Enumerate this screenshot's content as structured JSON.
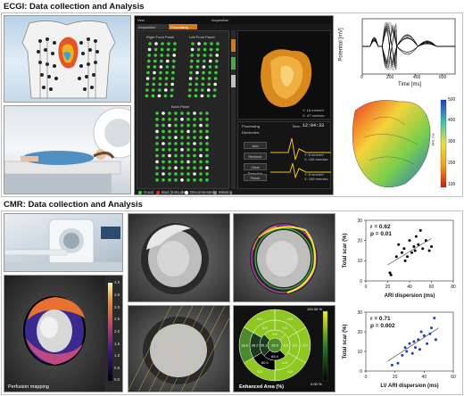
{
  "ecgi": {
    "title": "ECGI: Data collection and Analysis",
    "app": {
      "tab_acquisition": "Acquisition",
      "tab_processing": "Processing",
      "tab_vest": "Vest",
      "right_front_panel": "Right Front Panel",
      "left_front_panel": "Left Front Panel",
      "back_panel": "Back Panel",
      "legend": [
        "Good",
        "Bad (Exlcude)",
        "Disconnected",
        "Missing"
      ],
      "processing_label": "Processing",
      "electrodes_label": "Electrodes:",
      "buttons": [
        "Add",
        "Remove",
        "Clear Selection",
        "Finish"
      ],
      "time_label": "Time:",
      "time_value": "12:04:33",
      "acquisition_label": "Acquisition",
      "readout_1": "Y: 16 mm/mV",
      "readout_2": "X: 47 mm/sec",
      "readout_3": "Y: 8 mm/mV",
      "readout_4": "X: 106 mm/sec",
      "readout_5": "Y: 8 mm/mV",
      "readout_6": "X: 106 mm/sec"
    },
    "potential_chart": {
      "ylabel": "Potential [mV]",
      "xlabel": "Time [ms]",
      "xticks": [
        "0",
        "200",
        "400",
        "600"
      ],
      "xlim": [
        0,
        700
      ]
    },
    "heart_map": {
      "colorbar_ticks": [
        "500",
        "400",
        "300",
        "200",
        "100"
      ],
      "colorbar_label": "ARI, ms"
    }
  },
  "cmr": {
    "title": "CMR: Data collection and Analysis",
    "perfusion_caption": "Perfusion mapping",
    "perfusion_colorbar_ticks": [
      "4.0",
      "3.5",
      "3.0",
      "2.5",
      "2.0",
      "1.5",
      "1.0",
      "0.5",
      "0.0"
    ],
    "bullseye": {
      "caption": "Enhanced Area (%)",
      "top_label": "100.00 %",
      "bottom_label": "0.00 %",
      "segments_outer": [
        "0.0",
        "0.0",
        "0.0",
        "0.0",
        "18.6",
        "0.0"
      ],
      "segments_mid": [
        "0.0",
        "0.0",
        "0.0",
        "60.5",
        "38.2",
        "0.0"
      ],
      "segments_inner": [
        "0.0",
        "0.0",
        "85.4",
        "55.1"
      ],
      "apex": "28.9"
    }
  },
  "chart_data": [
    {
      "type": "scatter",
      "annotation_r": "r = 0.62",
      "annotation_p": "p = 0.01",
      "xlabel": "ARI dispersion (ms)",
      "ylabel": "Total scar (%)",
      "xticks": [
        "0",
        "20",
        "40",
        "60",
        "80"
      ],
      "yticks": [
        "0",
        "10",
        "20",
        "30"
      ],
      "xlim": [
        0,
        80
      ],
      "ylim": [
        0,
        30
      ],
      "color": "#000000",
      "points": [
        [
          22,
          4
        ],
        [
          23,
          3
        ],
        [
          28,
          12
        ],
        [
          30,
          18
        ],
        [
          33,
          14
        ],
        [
          35,
          16
        ],
        [
          36,
          10
        ],
        [
          38,
          12
        ],
        [
          40,
          20
        ],
        [
          42,
          14
        ],
        [
          44,
          17
        ],
        [
          45,
          15
        ],
        [
          46,
          22
        ],
        [
          48,
          18
        ],
        [
          50,
          25
        ],
        [
          52,
          16
        ],
        [
          55,
          20
        ],
        [
          58,
          15
        ],
        [
          60,
          17
        ]
      ],
      "fit": [
        [
          20,
          8
        ],
        [
          60,
          21
        ]
      ]
    },
    {
      "type": "scatter",
      "annotation_r": "r = 0.71",
      "annotation_p": "p = 0.002",
      "xlabel": "LV ARI dispersion (ms)",
      "ylabel": "Total scar (%)",
      "xticks": [
        "0",
        "20",
        "40",
        "60"
      ],
      "yticks": [
        "0",
        "10",
        "20",
        "30"
      ],
      "xlim": [
        0,
        60
      ],
      "ylim": [
        0,
        30
      ],
      "color": "#1f3fa8",
      "points": [
        [
          18,
          3
        ],
        [
          22,
          4
        ],
        [
          25,
          8
        ],
        [
          27,
          12
        ],
        [
          28,
          10
        ],
        [
          30,
          14
        ],
        [
          32,
          9
        ],
        [
          33,
          15
        ],
        [
          34,
          12
        ],
        [
          36,
          16
        ],
        [
          37,
          11
        ],
        [
          38,
          20
        ],
        [
          40,
          18
        ],
        [
          42,
          14
        ],
        [
          44,
          19
        ],
        [
          45,
          22
        ],
        [
          47,
          27
        ],
        [
          48,
          16
        ]
      ],
      "fit": [
        [
          15,
          5
        ],
        [
          50,
          22
        ]
      ]
    }
  ]
}
